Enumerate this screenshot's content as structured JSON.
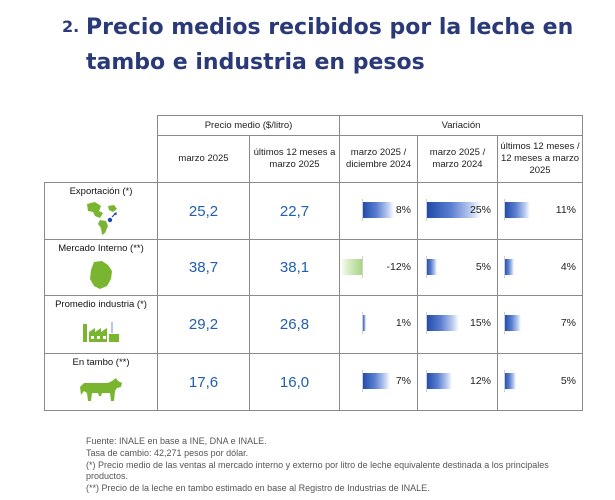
{
  "heading": {
    "number": "2.",
    "title": "Precio medios recibidos por la leche en tambo e industria en pesos"
  },
  "table": {
    "group_headers": {
      "precio": "Precio medio ($/litro)",
      "variacion": "Variación"
    },
    "sub_headers": [
      "marzo 2025",
      "últimos 12 meses a marzo 2025",
      "marzo 2025 / diciembre 2024",
      "marzo 2025 / marzo 2024",
      "últimos 12 meses / 12 meses a marzo 2025"
    ],
    "rows": [
      {
        "label": "Exportación (*)",
        "icon": "world-map-icon",
        "marzo_2025": "25,2",
        "ultimos_12": "22,7",
        "var_dic": "8%",
        "var_dic_value": 8,
        "var_mar": "25%",
        "var_mar_value": 25,
        "var_12": "11%",
        "var_12_value": 11
      },
      {
        "label": "Mercado Interno (**)",
        "icon": "uruguay-map-icon",
        "marzo_2025": "38,7",
        "ultimos_12": "38,1",
        "var_dic": "-12%",
        "var_dic_value": -12,
        "var_mar": "5%",
        "var_mar_value": 5,
        "var_12": "4%",
        "var_12_value": 4
      },
      {
        "label": "Promedio industria (*)",
        "icon": "factory-icon",
        "marzo_2025": "29,2",
        "ultimos_12": "26,8",
        "var_dic": "1%",
        "var_dic_value": 1,
        "var_mar": "15%",
        "var_mar_value": 15,
        "var_12": "7%",
        "var_12_value": 7
      },
      {
        "label": "En tambo (**)",
        "icon": "cow-icon",
        "marzo_2025": "17,6",
        "ultimos_12": "16,0",
        "var_dic": "7%",
        "var_dic_value": 7,
        "var_mar": "12%",
        "var_mar_value": 12,
        "var_12": "5%",
        "var_12_value": 5
      }
    ],
    "colors": {
      "value_text": "#1f5fb0",
      "bar_positive": "#1f49a8",
      "bar_negative": "#a9d483",
      "icon_green": "#7ab530"
    }
  },
  "notes": [
    "Fuente: INALE en base a INE, DNA e INALE.",
    "Tasa de cambio: 42,271 pesos por dólar.",
    "(*) Precio medio de las ventas al mercado interno y externo por litro de leche equivalente destinada a los principales productos.",
    "(**) Precio de la leche en tambo estimado en base al Registro de Industrias de INALE."
  ]
}
